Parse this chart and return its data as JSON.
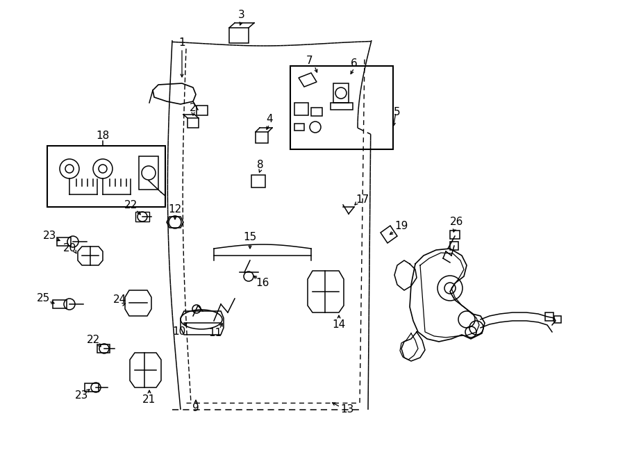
{
  "bg_color": "#ffffff",
  "line_color": "#000000",
  "fig_width": 9.0,
  "fig_height": 6.61,
  "dpi": 100,
  "lw": 1.1,
  "label_fs": 11,
  "xlim": [
    0,
    900
  ],
  "ylim": [
    0,
    661
  ]
}
